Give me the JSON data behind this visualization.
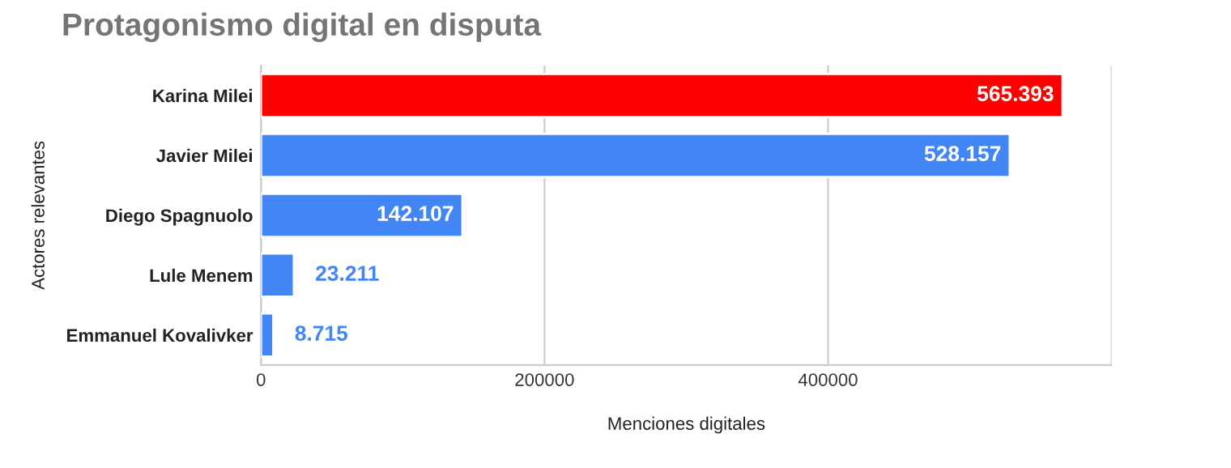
{
  "chart_data": {
    "type": "bar",
    "orientation": "horizontal",
    "title": "Protagonismo digital en disputa",
    "xlabel": "Menciones digitales",
    "ylabel": "Actores relevantes",
    "categories": [
      "Karina Milei",
      "Javier Milei",
      "Diego Spagnuolo",
      "Lule Menem",
      "Emmanuel Kovalivker"
    ],
    "values": [
      565393,
      528157,
      142107,
      23211,
      8715
    ],
    "colors": [
      "#ff0000",
      "#4285f4",
      "#4285f4",
      "#4285f4",
      "#4285f4"
    ],
    "value_labels": [
      "565.393",
      "528.157",
      "142.107",
      "23.211",
      "8.715"
    ],
    "xlim": [
      0,
      600000
    ],
    "xticks": [
      0,
      200000,
      400000,
      {
        "value": 600000,
        "label": null
      }
    ],
    "grid": "x",
    "legend": false
  }
}
